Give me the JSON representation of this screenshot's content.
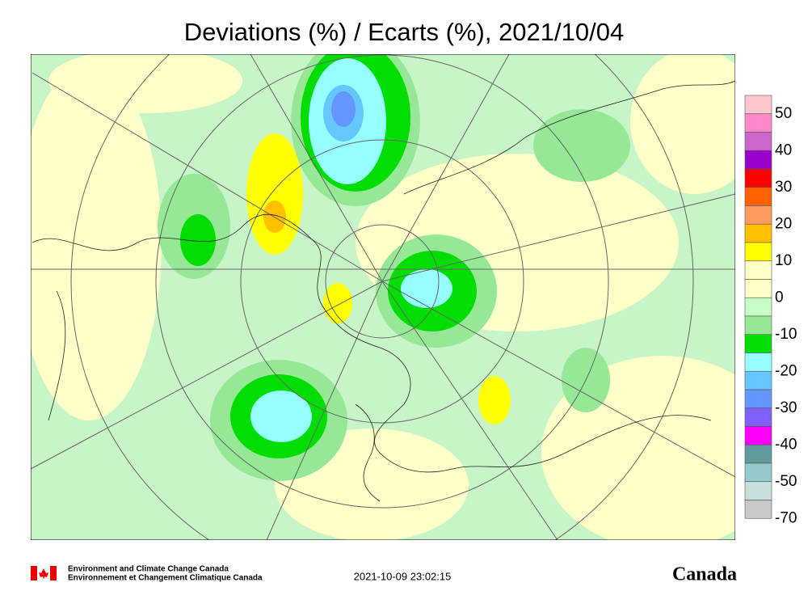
{
  "header": {
    "title": "Deviations (%) / Ecarts (%), 2021/10/04"
  },
  "legend": {
    "labels": [
      "50",
      "40",
      "30",
      "20",
      "10",
      "0",
      "-10",
      "-20",
      "-30",
      "-40",
      "-50",
      "-70"
    ],
    "colors": [
      "#ffc8d0",
      "#ff88c8",
      "#cc66cc",
      "#9900cc",
      "#ff0000",
      "#ff6000",
      "#ff9a60",
      "#ffc000",
      "#ffff00",
      "#ffffc8",
      "#ffffc8",
      "#c8ffc8",
      "#96e896",
      "#00dd00",
      "#96ffff",
      "#64c8ff",
      "#6496ff",
      "#8060ff",
      "#ff00ff",
      "#609a9a",
      "#96caca",
      "#c8e0dc",
      "#c8c8c8"
    ]
  },
  "footer": {
    "agency_en": "Environment and Climate Change Canada",
    "agency_fr": "Environnement et Changement Climatique Canada",
    "timestamp": "2021-10-09 23:02:15",
    "wordmark": "Canada"
  }
}
